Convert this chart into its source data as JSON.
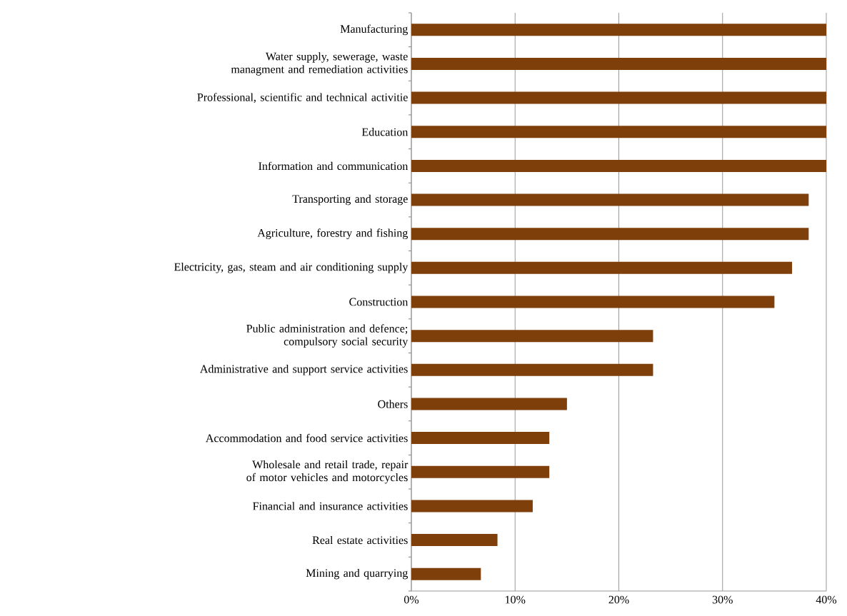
{
  "chart_data": {
    "type": "bar",
    "orientation": "horizontal",
    "categories": [
      "Manufacturing",
      "Water supply, sewerage, waste managment and remediation activities",
      "Professional, scientific and technical activitie",
      "Education",
      "Information and communication",
      "Transporting and storage",
      "Agriculture, forestry and fishing",
      "Electricity, gas, steam and air conditioning supply",
      "Construction",
      "Public administration and defence; compulsory social security",
      "Administrative and support service activities",
      "Others",
      "Accommodation and food service activities",
      "Wholesale and retail trade, repair of motor vehicles and motorcycles",
      "Financial and insurance activities",
      "Real estate activities",
      "Mining and quarrying"
    ],
    "values": [
      40,
      40,
      40,
      40,
      40,
      38.3,
      38.3,
      36.7,
      35,
      23.3,
      23.3,
      15,
      13.3,
      13.3,
      11.7,
      8.3,
      6.7
    ],
    "color": "#7f3f0a",
    "xlim": [
      0,
      40
    ],
    "xticks": [
      {
        "value": 0,
        "label": "0%"
      },
      {
        "value": 10,
        "label": "10%"
      },
      {
        "value": 20,
        "label": "20%"
      },
      {
        "value": 30,
        "label": "30%"
      },
      {
        "value": 40,
        "label": "40%"
      }
    ],
    "grid": "x"
  }
}
